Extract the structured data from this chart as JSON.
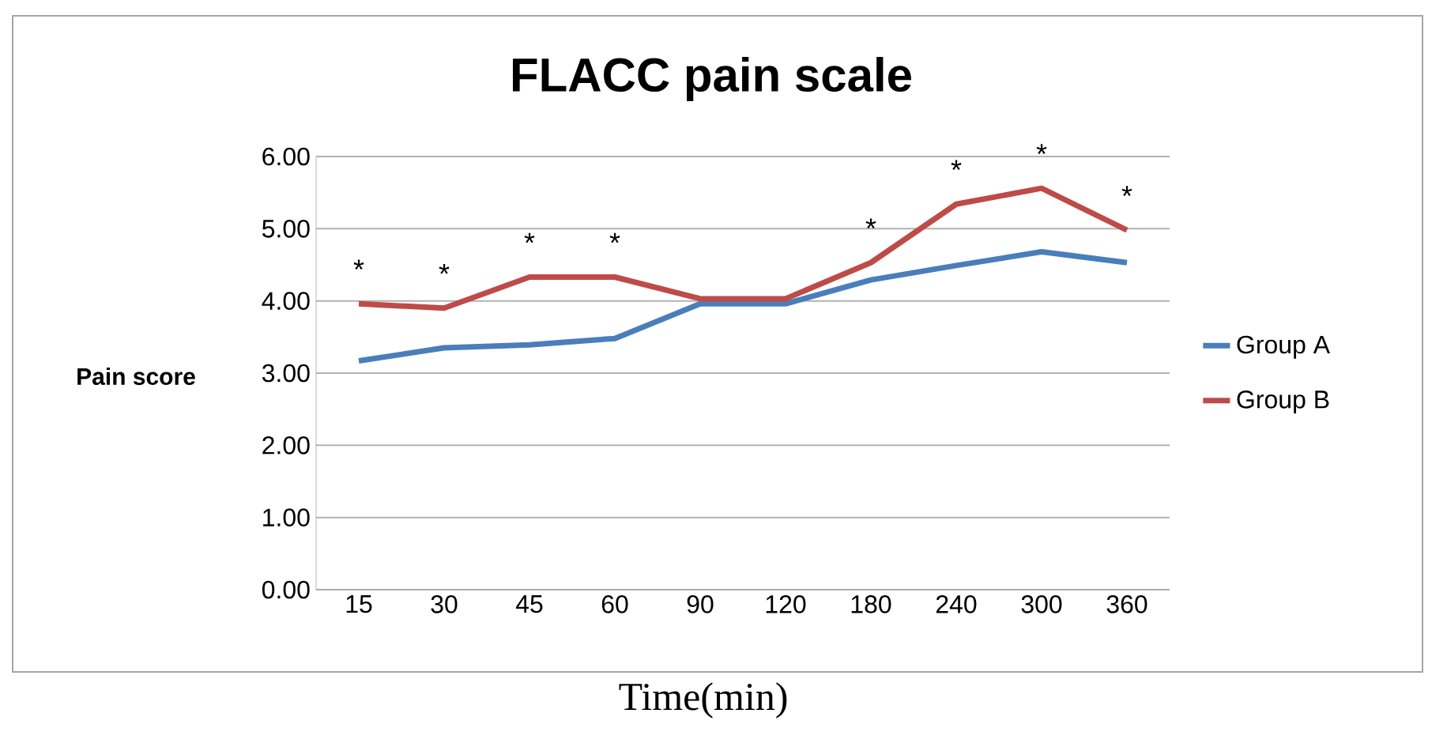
{
  "chart_data": {
    "type": "line",
    "title": "FLACC pain scale",
    "xlabel": "Time(min)",
    "ylabel": "Pain score",
    "categories": [
      "15",
      "30",
      "45",
      "60",
      "90",
      "120",
      "180",
      "240",
      "300",
      "360"
    ],
    "series": [
      {
        "name": "Group A",
        "color": "#4a7ebb",
        "values": [
          3.17,
          3.35,
          3.39,
          3.48,
          3.96,
          3.96,
          4.29,
          4.49,
          4.68,
          4.53
        ]
      },
      {
        "name": "Group B",
        "color": "#be4b48",
        "values": [
          3.96,
          3.9,
          4.33,
          4.33,
          4.03,
          4.03,
          4.53,
          5.34,
          5.56,
          4.98
        ]
      }
    ],
    "ylim": [
      0,
      6
    ],
    "yticks": [
      {
        "value": 0,
        "label": "0.00"
      },
      {
        "value": 1,
        "label": "1.00"
      },
      {
        "value": 2,
        "label": "2.00"
      },
      {
        "value": 3,
        "label": "3.00"
      },
      {
        "value": 4,
        "label": "4.00"
      },
      {
        "value": 5,
        "label": "5.00"
      },
      {
        "value": 6,
        "label": "6.00"
      }
    ],
    "grid": "y",
    "legend": "right",
    "marker": "none",
    "line_style": "solid",
    "annotations": [
      {
        "text": "*",
        "x": "15",
        "y": 3.96
      },
      {
        "text": "*",
        "x": "30",
        "y": 3.9
      },
      {
        "text": "*",
        "x": "45",
        "y": 4.33
      },
      {
        "text": "*",
        "x": "60",
        "y": 4.33
      },
      {
        "text": "*",
        "x": "180",
        "y": 4.53
      },
      {
        "text": "*",
        "x": "240",
        "y": 5.34
      },
      {
        "text": "*",
        "x": "300",
        "y": 5.56
      },
      {
        "text": "*",
        "x": "360",
        "y": 4.98
      }
    ]
  }
}
